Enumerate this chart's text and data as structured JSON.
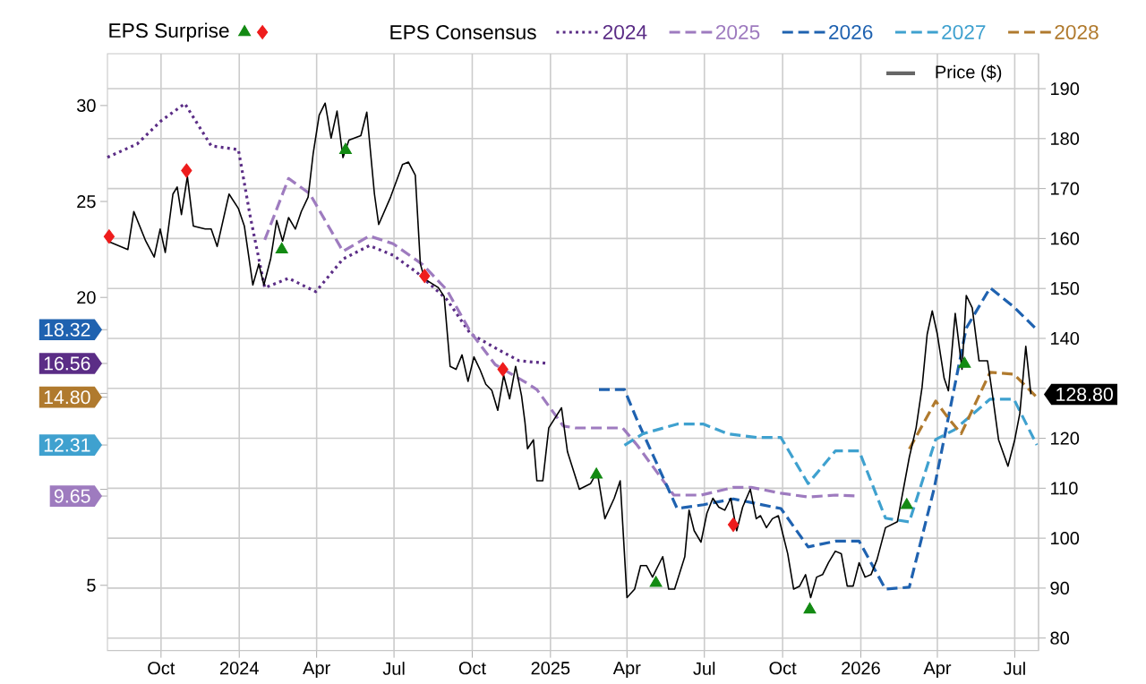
{
  "chart_data": {
    "type": "line",
    "legend_title": "EPS Consensus",
    "annotations": [
      "EPS Surprise"
    ],
    "xlim": [
      "2023-07-30",
      "2026-07-29"
    ],
    "xticks": [
      {
        "value": "2023-10-01",
        "label": "Oct"
      },
      {
        "value": "2024-01-01",
        "label": "2024"
      },
      {
        "value": "2024-04-01",
        "label": "Apr"
      },
      {
        "value": "2024-07-01",
        "label": "Jul"
      },
      {
        "value": "2024-10-01",
        "label": "Oct"
      },
      {
        "value": "2025-01-01",
        "label": "2025"
      },
      {
        "value": "2025-04-01",
        "label": "Apr"
      },
      {
        "value": "2025-07-01",
        "label": "Jul"
      },
      {
        "value": "2025-10-01",
        "label": "Oct"
      },
      {
        "value": "2026-01-01",
        "label": "2026"
      },
      {
        "value": "2026-04-01",
        "label": "Apr"
      },
      {
        "value": "2026-07-01",
        "label": "Jul"
      }
    ],
    "ylim": [
      1.6,
      32.7
    ],
    "yticks": [
      5,
      9.65,
      {
        "value": 10,
        "label": null
      },
      12.31,
      {
        "value": 14.8,
        "label": "14.80"
      },
      {
        "value": 15,
        "label": null
      },
      16.56,
      18.32,
      20,
      25,
      30
    ],
    "y2lim": [
      77.5,
      197
    ],
    "y2ticks": [
      80,
      90,
      100,
      110,
      120,
      {
        "value": 130,
        "label": null
      },
      140,
      150,
      160,
      170,
      180,
      190
    ],
    "grid": true,
    "legend": "top",
    "series": [
      {
        "name": "2024",
        "color": "#5b2d86",
        "line_style": "dotted",
        "x": [
          "2023-07-30",
          "2023-09-03",
          "2023-10-01",
          "2023-10-29",
          "2023-11-29",
          "2023-12-31",
          "2024-01-14",
          "2024-01-31",
          "2024-02-28",
          "2024-03-31",
          "2024-05-02",
          "2024-06-02",
          "2024-06-30",
          "2024-07-28",
          "2024-09-01",
          "2024-09-29",
          "2024-11-04",
          "2024-11-25",
          "2024-12-30"
        ],
        "values": [
          27.3,
          28.0,
          29.2,
          30.1,
          27.9,
          27.7,
          24.2,
          20.5,
          21.0,
          20.3,
          22.0,
          22.7,
          22.2,
          21.3,
          19.9,
          18.1,
          17.2,
          16.7,
          16.56
        ]
      },
      {
        "name": "2025",
        "color": "#9e7bbf",
        "line_style": "dashed",
        "x": [
          "2024-01-31",
          "2024-02-28",
          "2024-03-24",
          "2024-05-02",
          "2024-06-02",
          "2024-06-30",
          "2024-08-04",
          "2024-09-01",
          "2024-09-29",
          "2024-10-28",
          "2024-12-02",
          "2024-12-16",
          "2025-01-16",
          "2025-01-30",
          "2025-03-27",
          "2025-04-13",
          "2025-05-26",
          "2025-06-27",
          "2025-08-04",
          "2025-08-25",
          "2025-09-29",
          "2025-10-31",
          "2025-12-02",
          "2025-12-30"
        ],
        "values": [
          23.0,
          26.2,
          25.4,
          22.4,
          23.2,
          22.8,
          21.7,
          20.4,
          18.2,
          16.5,
          15.6,
          15.2,
          13.3,
          13.2,
          13.2,
          12.3,
          9.7,
          9.7,
          10.1,
          10.1,
          9.8,
          9.6,
          9.7,
          9.65
        ]
      },
      {
        "name": "2026",
        "color": "#1f62b0",
        "line_style": "dashed",
        "x": [
          "2025-02-27",
          "2025-03-29",
          "2025-04-13",
          "2025-05-30",
          "2025-06-30",
          "2025-08-04",
          "2025-09-29",
          "2025-10-31",
          "2025-12-02",
          "2025-12-30",
          "2026-01-30",
          "2026-02-27",
          "2026-03-28",
          "2026-04-21",
          "2026-05-05",
          "2026-06-02",
          "2026-06-30",
          "2026-07-27"
        ],
        "values": [
          15.2,
          15.2,
          13.6,
          9.0,
          9.2,
          9.5,
          9.0,
          7.0,
          7.3,
          7.3,
          4.8,
          4.9,
          10.0,
          15.3,
          18.4,
          20.5,
          19.5,
          18.32
        ]
      },
      {
        "name": "2027",
        "color": "#3fa1cf",
        "line_style": "dashed",
        "x": [
          "2025-03-29",
          "2025-04-20",
          "2025-05-30",
          "2025-06-30",
          "2025-07-28",
          "2025-09-01",
          "2025-09-29",
          "2025-10-31",
          "2025-12-02",
          "2025-12-30",
          "2026-01-30",
          "2026-02-27",
          "2026-03-30",
          "2026-04-21",
          "2026-06-02",
          "2026-06-30",
          "2026-07-27"
        ],
        "values": [
          12.3,
          12.9,
          13.4,
          13.4,
          12.9,
          12.7,
          12.7,
          10.3,
          12.0,
          12.0,
          8.5,
          8.3,
          12.6,
          13.1,
          14.7,
          14.7,
          12.31
        ]
      },
      {
        "name": "2028",
        "color": "#b07a2e",
        "line_style": "dashed",
        "x": [
          "2026-02-27",
          "2026-03-30",
          "2026-04-14",
          "2026-04-29",
          "2026-06-02",
          "2026-06-30",
          "2026-07-27"
        ],
        "values": [
          12.1,
          14.6,
          13.7,
          12.9,
          16.1,
          16.0,
          14.8
        ]
      },
      {
        "name": "Price ($)",
        "color": "#000000",
        "axis": "y2",
        "line_style": "solid",
        "x": [
          "2023-07-30",
          "2023-08-23",
          "2023-08-30",
          "2023-09-13",
          "2023-09-23",
          "2023-09-30",
          "2023-10-06",
          "2023-10-15",
          "2023-10-20",
          "2023-10-25",
          "2023-11-01",
          "2023-11-08",
          "2023-11-22",
          "2023-11-29",
          "2023-12-06",
          "2023-12-20",
          "2023-12-31",
          "2024-01-07",
          "2024-01-17",
          "2024-01-24",
          "2024-01-30",
          "2024-02-07",
          "2024-02-14",
          "2024-02-21",
          "2024-02-28",
          "2024-03-07",
          "2024-03-14",
          "2024-03-22",
          "2024-03-28",
          "2024-04-04",
          "2024-04-11",
          "2024-04-18",
          "2024-04-25",
          "2024-05-02",
          "2024-05-09",
          "2024-05-23",
          "2024-05-30",
          "2024-06-08",
          "2024-06-13",
          "2024-06-27",
          "2024-07-11",
          "2024-07-18",
          "2024-07-26",
          "2024-08-01",
          "2024-08-06",
          "2024-08-22",
          "2024-08-29",
          "2024-09-05",
          "2024-09-12",
          "2024-09-19",
          "2024-09-26",
          "2024-10-03",
          "2024-10-10",
          "2024-10-17",
          "2024-10-24",
          "2024-10-31",
          "2024-11-07",
          "2024-11-14",
          "2024-11-21",
          "2024-11-28",
          "2024-12-02",
          "2024-12-05",
          "2024-12-12",
          "2024-12-16",
          "2024-12-23",
          "2024-12-30",
          "2025-01-14",
          "2025-01-21",
          "2025-02-04",
          "2025-02-17",
          "2025-02-25",
          "2025-03-06",
          "2025-03-17",
          "2025-03-24",
          "2025-04-01",
          "2025-04-10",
          "2025-04-17",
          "2025-04-24",
          "2025-05-01",
          "2025-05-13",
          "2025-05-20",
          "2025-05-27",
          "2025-06-08",
          "2025-06-13",
          "2025-06-19",
          "2025-06-27",
          "2025-07-04",
          "2025-07-11",
          "2025-07-18",
          "2025-07-25",
          "2025-08-01",
          "2025-08-08",
          "2025-08-15",
          "2025-08-24",
          "2025-08-31",
          "2025-09-05",
          "2025-09-12",
          "2025-09-19",
          "2025-09-26",
          "2025-10-01",
          "2025-10-07",
          "2025-10-14",
          "2025-10-21",
          "2025-10-28",
          "2025-11-03",
          "2025-11-10",
          "2025-11-17",
          "2025-11-24",
          "2025-12-02",
          "2025-12-09",
          "2025-12-16",
          "2025-12-23",
          "2025-12-30",
          "2026-01-06",
          "2026-01-13",
          "2026-01-20",
          "2026-01-30",
          "2026-02-06",
          "2026-02-13",
          "2026-02-27",
          "2026-03-07",
          "2026-03-14",
          "2026-03-20",
          "2026-03-26",
          "2026-04-01",
          "2026-04-09",
          "2026-04-14",
          "2026-04-22",
          "2026-04-30",
          "2026-05-05",
          "2026-05-12",
          "2026-05-20",
          "2026-05-30",
          "2026-06-05",
          "2026-06-12",
          "2026-06-23",
          "2026-07-01",
          "2026-07-07",
          "2026-07-14",
          "2026-07-20"
        ],
        "values": [
          159.5,
          157.8,
          165.4,
          159.5,
          156.3,
          161.9,
          157.2,
          168.9,
          170.3,
          164.8,
          172.4,
          162.5,
          161.9,
          161.9,
          158.4,
          168.9,
          166.0,
          162.5,
          150.7,
          154.9,
          150.7,
          156.0,
          163.6,
          159.5,
          164.2,
          161.9,
          165.4,
          168.3,
          177.1,
          184.7,
          187.1,
          180.1,
          185.5,
          176.2,
          179.7,
          180.6,
          185.3,
          168.9,
          162.8,
          168.3,
          174.8,
          175.3,
          172.7,
          154.9,
          151.9,
          150.2,
          148.4,
          134.4,
          133.8,
          136.7,
          131.4,
          136.3,
          133.8,
          130.8,
          129.6,
          125.6,
          132.6,
          127.9,
          134.4,
          128.5,
          123.2,
          117.9,
          119.7,
          111.5,
          111.5,
          122.1,
          126.1,
          117.3,
          109.8,
          110.9,
          113.3,
          103.9,
          108.0,
          111.5,
          88.1,
          89.8,
          94.5,
          94.5,
          92.2,
          96.3,
          89.8,
          89.8,
          96.3,
          105.6,
          101.5,
          99.2,
          105.0,
          108.0,
          106.2,
          105.6,
          108.0,
          101.5,
          106.2,
          109.8,
          103.9,
          104.5,
          102.1,
          103.9,
          104.5,
          101.0,
          96.9,
          89.8,
          90.4,
          92.7,
          88.1,
          92.2,
          92.7,
          95.1,
          97.4,
          96.9,
          90.4,
          90.4,
          95.1,
          92.2,
          92.7,
          95.7,
          102.1,
          102.7,
          103.3,
          116.2,
          122.1,
          130.2,
          140.8,
          145.5,
          140.8,
          132.0,
          129.5,
          145.0,
          133.8,
          148.6,
          146.1,
          135.5,
          135.5,
          128.5,
          119.7,
          114.4,
          119.7,
          125.0,
          138.4,
          128.8
        ],
        "value_labels": [
          null,
          null,
          null,
          null,
          null,
          null,
          null,
          null,
          null,
          null,
          null,
          null,
          null,
          null,
          null,
          null,
          null,
          null,
          null,
          null,
          null,
          null,
          null,
          null,
          null,
          null,
          null,
          null,
          null,
          null,
          null,
          null,
          null,
          null,
          null,
          null,
          null,
          null,
          null,
          null,
          null,
          null,
          null,
          null,
          null,
          null,
          null,
          null,
          null,
          null,
          null,
          null,
          null,
          null,
          null,
          null,
          null,
          null,
          null,
          null,
          null,
          null,
          null,
          null,
          null,
          null,
          null,
          null,
          null,
          null,
          null,
          null,
          null,
          null,
          null,
          null,
          null,
          null,
          null,
          null,
          null,
          null,
          null,
          null,
          null,
          null,
          null,
          null,
          null,
          null,
          null,
          null,
          null,
          null,
          null,
          null,
          null,
          null,
          null,
          null,
          null,
          null,
          null,
          null,
          null,
          null,
          null,
          null,
          null,
          null,
          null,
          null,
          null,
          null,
          null,
          null,
          null,
          null,
          null,
          null,
          null,
          null,
          null,
          null,
          null,
          null,
          null,
          null,
          null,
          null,
          null,
          null,
          null,
          null,
          null,
          null,
          null,
          null,
          null,
          "128.80"
        ]
      },
      {
        "type": "scatter",
        "color": "#138a13",
        "axis": "y2",
        "marker": "triangle",
        "x": [
          "2024-02-20",
          "2024-05-05",
          "2025-02-24",
          "2025-05-05",
          "2025-11-02",
          "2026-02-24",
          "2026-05-03"
        ],
        "values": [
          157.8,
          177.7,
          112.7,
          91.0,
          85.7,
          106.6,
          134.9
        ]
      },
      {
        "type": "scatter",
        "color": "#ee1c1c",
        "axis": "y2",
        "marker": "diamond",
        "x": [
          "2023-08-01",
          "2023-10-31",
          "2024-08-06",
          "2024-11-06",
          "2025-08-04"
        ],
        "values": [
          160.4,
          173.6,
          152.5,
          133.8,
          102.7
        ]
      }
    ]
  }
}
